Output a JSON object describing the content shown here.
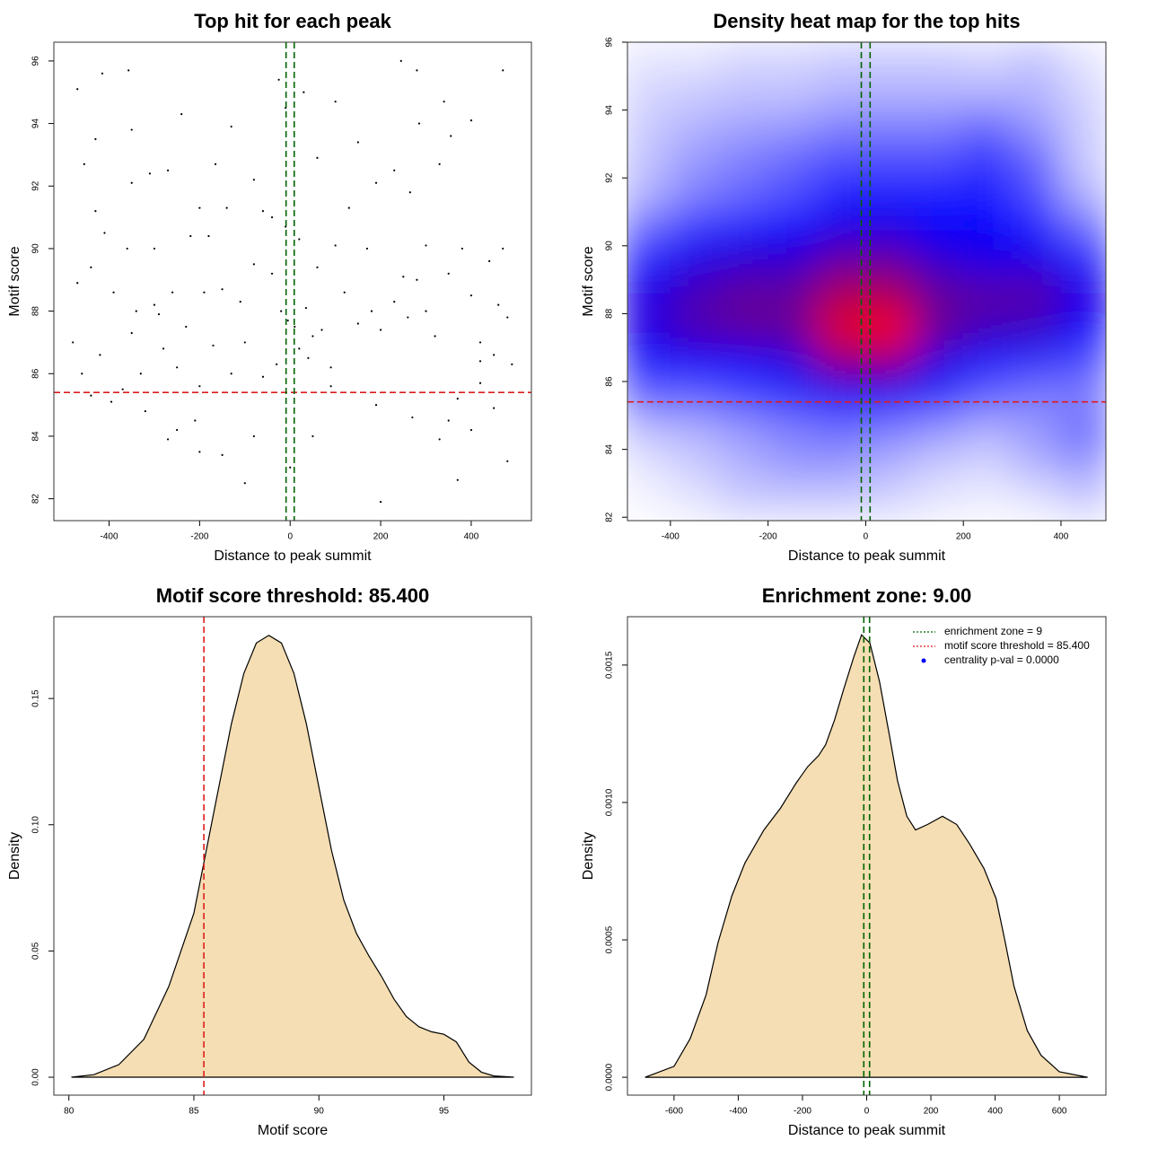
{
  "chart_data": [
    {
      "type": "scatter",
      "title": "Top hit for each peak",
      "x_label": "Distance to peak summit",
      "y_label": "Motif score",
      "color": "#000000",
      "xlim": [
        -522,
        533
      ],
      "ylim": [
        81.3,
        96.6
      ],
      "xticks": [
        -400,
        -200,
        0,
        200,
        400
      ],
      "yticks": [
        82,
        84,
        86,
        88,
        90,
        92,
        94,
        96
      ],
      "x": [
        -470,
        -415,
        -357,
        -350,
        -430,
        -455,
        -350,
        -310,
        -240,
        -270,
        -130,
        -165,
        -10,
        -25,
        30,
        100,
        245,
        280,
        340,
        355,
        400,
        470,
        150,
        285,
        330,
        230,
        190,
        60,
        -80,
        -60,
        -200,
        -140,
        -220,
        -180,
        -300,
        -360,
        -410,
        -430,
        -440,
        -470,
        -390,
        -340,
        -300,
        -260,
        -230,
        -190,
        -150,
        -110,
        -80,
        -40,
        -20,
        -5,
        10,
        20,
        35,
        50,
        40,
        70,
        90,
        120,
        150,
        180,
        200,
        230,
        260,
        280,
        300,
        320,
        350,
        380,
        400,
        420,
        440,
        460,
        480,
        450,
        490,
        420,
        370,
        350,
        330,
        400,
        450,
        480,
        370,
        270,
        190,
        200,
        90,
        50,
        0,
        -80,
        -100,
        -150,
        -200,
        -210,
        -250,
        -270,
        -320,
        -395,
        -440,
        -480,
        -460,
        -420,
        -370,
        -330,
        -280,
        -250,
        -200,
        -170,
        -130,
        -60,
        -30,
        60,
        100,
        170,
        250,
        300,
        470,
        -10,
        20,
        -40,
        130,
        265,
        420,
        -100,
        -290,
        -350
      ],
      "values": [
        95.1,
        95.6,
        95.7,
        93.8,
        93.5,
        92.7,
        92.1,
        92.4,
        94.3,
        92.5,
        93.9,
        92.7,
        94.5,
        95.4,
        95.0,
        94.7,
        96.0,
        95.7,
        94.7,
        93.6,
        94.1,
        95.7,
        93.4,
        94.0,
        92.7,
        92.5,
        92.1,
        92.9,
        92.2,
        91.2,
        91.3,
        91.3,
        90.4,
        90.4,
        90.0,
        90.0,
        90.5,
        91.2,
        89.4,
        88.9,
        88.6,
        88.0,
        88.2,
        88.6,
        87.5,
        88.6,
        88.7,
        88.3,
        89.5,
        89.2,
        88.0,
        87.7,
        87.5,
        86.8,
        88.1,
        87.2,
        86.5,
        87.4,
        86.2,
        88.6,
        87.6,
        88.0,
        87.4,
        88.3,
        87.8,
        89.0,
        88.0,
        87.2,
        89.2,
        90.0,
        88.5,
        87.0,
        89.6,
        88.2,
        87.8,
        86.6,
        86.3,
        85.7,
        85.2,
        84.5,
        83.9,
        84.2,
        84.9,
        83.2,
        82.6,
        84.6,
        85.0,
        81.9,
        85.6,
        84.0,
        83.0,
        84.0,
        82.5,
        83.4,
        83.5,
        84.5,
        84.2,
        83.9,
        84.8,
        85.1,
        85.3,
        87.0,
        86.0,
        86.6,
        85.5,
        86.0,
        86.8,
        86.2,
        85.6,
        86.9,
        86.0,
        85.9,
        86.3,
        89.4,
        90.1,
        90.0,
        89.1,
        90.1,
        90.0,
        90.7,
        90.3,
        91.0,
        91.3,
        91.8,
        86.4,
        87.0,
        87.9,
        87.3
      ],
      "reference_lines": [
        {
          "axis": "y",
          "value": 85.4,
          "color": "#dd1c1c"
        },
        {
          "axis": "x",
          "value": -9,
          "color": "#006400"
        },
        {
          "axis": "x",
          "value": 9,
          "color": "#006400"
        }
      ]
    },
    {
      "type": "heatmap",
      "title": "Density heat map for the top hits",
      "x_label": "Distance to peak summit",
      "y_label": "Motif score",
      "color_scale": [
        "#ffffff",
        "#0000ff",
        "#ff0000"
      ],
      "xlim": [
        -488,
        492
      ],
      "ylim": [
        81.9,
        96
      ],
      "xticks": [
        -400,
        -200,
        0,
        200,
        400
      ],
      "yticks": [
        82,
        84,
        86,
        88,
        90,
        92,
        94,
        96
      ],
      "x": [
        -450,
        -350,
        -250,
        -150,
        -50,
        50,
        150,
        250,
        350,
        450
      ],
      "y": [
        95.5,
        94.5,
        93.5,
        92.5,
        91.5,
        90.5,
        89.5,
        88.5,
        87.5,
        86.5,
        85.5,
        84.5,
        83.5,
        82.5
      ],
      "z": [
        [
          0.05,
          0.05,
          0.08,
          0.08,
          0.1,
          0.1,
          0.1,
          0.08,
          0.12,
          0.05
        ],
        [
          0.08,
          0.1,
          0.12,
          0.12,
          0.15,
          0.15,
          0.15,
          0.15,
          0.15,
          0.08
        ],
        [
          0.1,
          0.15,
          0.18,
          0.2,
          0.25,
          0.25,
          0.25,
          0.3,
          0.2,
          0.1
        ],
        [
          0.12,
          0.2,
          0.25,
          0.3,
          0.35,
          0.35,
          0.35,
          0.4,
          0.3,
          0.1
        ],
        [
          0.15,
          0.25,
          0.3,
          0.35,
          0.45,
          0.45,
          0.45,
          0.45,
          0.35,
          0.15
        ],
        [
          0.3,
          0.4,
          0.45,
          0.5,
          0.55,
          0.55,
          0.5,
          0.5,
          0.45,
          0.3
        ],
        [
          0.45,
          0.55,
          0.6,
          0.6,
          0.7,
          0.7,
          0.6,
          0.55,
          0.55,
          0.45
        ],
        [
          0.55,
          0.65,
          0.7,
          0.7,
          0.85,
          0.85,
          0.7,
          0.68,
          0.68,
          0.55
        ],
        [
          0.55,
          0.65,
          0.68,
          0.7,
          0.95,
          1.0,
          0.7,
          0.62,
          0.6,
          0.5
        ],
        [
          0.45,
          0.5,
          0.5,
          0.55,
          0.75,
          0.75,
          0.55,
          0.45,
          0.4,
          0.35
        ],
        [
          0.3,
          0.3,
          0.35,
          0.4,
          0.5,
          0.5,
          0.4,
          0.3,
          0.25,
          0.25
        ],
        [
          0.12,
          0.15,
          0.2,
          0.25,
          0.28,
          0.25,
          0.2,
          0.15,
          0.2,
          0.3
        ],
        [
          0.05,
          0.1,
          0.15,
          0.2,
          0.2,
          0.15,
          0.1,
          0.08,
          0.15,
          0.2
        ],
        [
          0.02,
          0.05,
          0.1,
          0.1,
          0.1,
          0.08,
          0.05,
          0.03,
          0.05,
          0.1
        ]
      ],
      "reference_lines": [
        {
          "axis": "y",
          "value": 85.4,
          "color": "#dd1c1c"
        },
        {
          "axis": "x",
          "value": -9,
          "color": "#006400"
        },
        {
          "axis": "x",
          "value": 9,
          "color": "#006400"
        }
      ]
    },
    {
      "type": "area",
      "title": "Motif score threshold: 85.400",
      "x_label": "Motif score",
      "y_label": "Density",
      "fill": "#f5deb3",
      "line_color": "#000000",
      "xlim": [
        79.4,
        98.5
      ],
      "ylim": [
        -0.0071,
        0.1824
      ],
      "xticks": [
        80,
        85,
        90,
        95
      ],
      "yticks": [
        {
          "value": 0,
          "label": "0.00"
        },
        {
          "value": 0.05,
          "label": "0.05"
        },
        {
          "value": 0.1,
          "label": "0.10"
        },
        {
          "value": 0.15,
          "label": "0.15"
        }
      ],
      "x": [
        80.1,
        81,
        82,
        83,
        84,
        85,
        85.5,
        86,
        86.5,
        87,
        87.5,
        88,
        88.5,
        89,
        89.5,
        90,
        90.5,
        91,
        91.5,
        92,
        92.5,
        93,
        93.5,
        94,
        94.5,
        95,
        95.5,
        96,
        96.5,
        97,
        97.8
      ],
      "values": [
        0,
        0.001,
        0.005,
        0.015,
        0.036,
        0.065,
        0.09,
        0.115,
        0.14,
        0.16,
        0.172,
        0.175,
        0.172,
        0.16,
        0.14,
        0.115,
        0.09,
        0.07,
        0.057,
        0.048,
        0.04,
        0.031,
        0.024,
        0.02,
        0.018,
        0.017,
        0.014,
        0.006,
        0.002,
        0.0005,
        0
      ],
      "reference_lines": [
        {
          "axis": "x",
          "value": 85.4,
          "color": "#dd1c1c"
        }
      ]
    },
    {
      "type": "area",
      "title": "Enrichment zone: 9.00",
      "x_label": "Distance to peak summit",
      "y_label": "Density",
      "fill": "#f5deb3",
      "line_color": "#000000",
      "xlim": [
        -745,
        745
      ],
      "ylim": [
        -6.5e-05,
        0.001676
      ],
      "xticks": [
        -600,
        -400,
        -200,
        0,
        200,
        400,
        600
      ],
      "yticks": [
        {
          "value": 0,
          "label": "0.0000"
        },
        {
          "value": 0.0005,
          "label": "0.0005"
        },
        {
          "value": 0.001,
          "label": "0.0010"
        },
        {
          "value": 0.0015,
          "label": "0.0015"
        }
      ],
      "x": [
        -690,
        -600,
        -550,
        -500,
        -463,
        -420,
        -379,
        -320,
        -268,
        -220,
        -184,
        -150,
        -128,
        -100,
        -72,
        -40,
        -16,
        10,
        40,
        70,
        96,
        125,
        152,
        190,
        236,
        280,
        320,
        365,
        403,
        430,
        459,
        500,
        543,
        600,
        688
      ],
      "values": [
        0,
        4e-05,
        0.00014,
        0.0003,
        0.00049,
        0.00066,
        0.00078,
        0.0009,
        0.00098,
        0.00107,
        0.00113,
        0.00117,
        0.00121,
        0.0013,
        0.00141,
        0.00153,
        0.00161,
        0.00158,
        0.00144,
        0.00125,
        0.00108,
        0.00095,
        0.0009,
        0.00092,
        0.00095,
        0.00092,
        0.00085,
        0.00076,
        0.00065,
        0.0005,
        0.00033,
        0.00017,
        8e-05,
        2e-05,
        0
      ],
      "reference_lines": [
        {
          "axis": "x",
          "value": -9,
          "color": "#006400"
        },
        {
          "axis": "x",
          "value": 9,
          "color": "#006400"
        }
      ],
      "legend": {
        "position": "top-right",
        "items": [
          {
            "label": "enrichment zone = 9",
            "color": "#006400",
            "symbol": "line"
          },
          {
            "label": "motif score threshold = 85.400",
            "color": "#dd1c1c",
            "symbol": "line"
          },
          {
            "label": "centrality p-val = 0.0000",
            "color": "#0000ff",
            "symbol": "point"
          }
        ]
      }
    }
  ]
}
